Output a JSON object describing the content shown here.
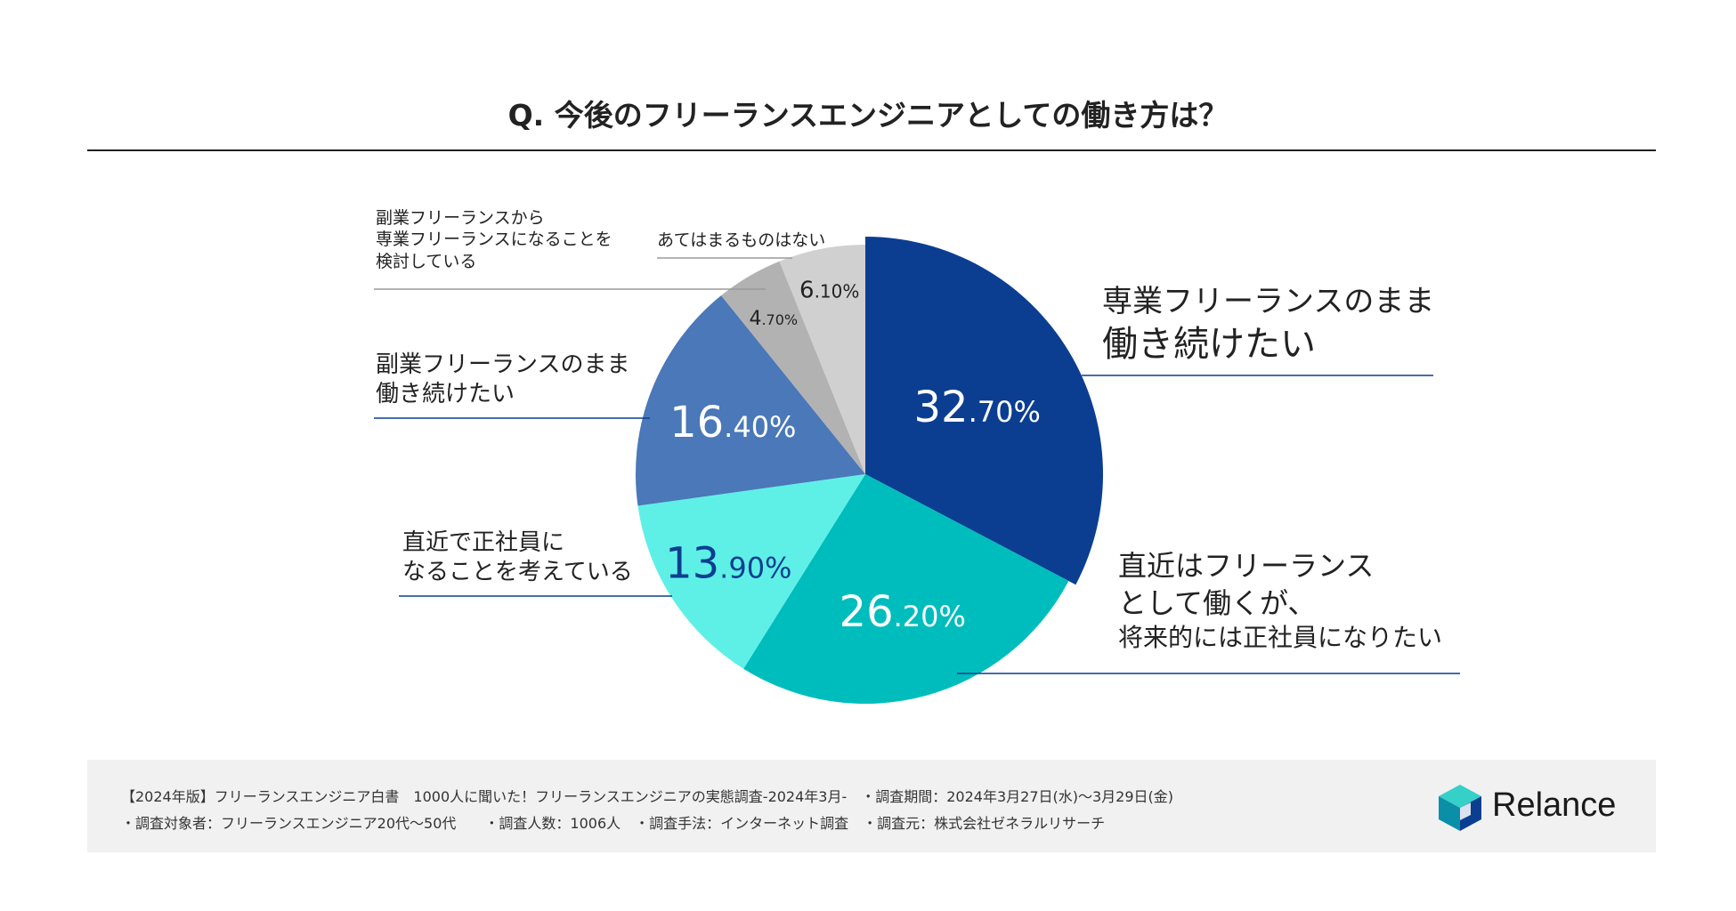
{
  "title": "Q. 今後のフリーランスエンジニアとしての働き方は？",
  "chart_data": {
    "type": "pie",
    "title": "Q. 今後のフリーランスエンジニアとしての働き方は？",
    "unit": "%",
    "slices": [
      {
        "label": "専業フリーランスのまま働き続けたい",
        "label_lines": [
          "専業フリーランスのまま",
          "働き続けたい"
        ],
        "value": 32.7,
        "int": "32",
        "dec": ".70%",
        "color": "#0b3e91",
        "text_color": "#ffffff"
      },
      {
        "label": "直近はフリーランスとして働くが、将来的には正社員になりたい",
        "label_lines": [
          "直近はフリーランス",
          "として働くが、",
          "将来的には正社員になりたい"
        ],
        "value": 26.2,
        "int": "26",
        "dec": ".20%",
        "color": "#00bdbd",
        "text_color": "#ffffff"
      },
      {
        "label": "直近で正社員になることを考えている",
        "label_lines": [
          "直近で正社員に",
          "なることを考えている"
        ],
        "value": 13.9,
        "int": "13",
        "dec": ".90%",
        "color": "#5ef0e6",
        "text_color": "#0b3e91"
      },
      {
        "label": "副業フリーランスのまま働き続けたい",
        "label_lines": [
          "副業フリーランスのまま",
          "働き続けたい"
        ],
        "value": 16.4,
        "int": "16",
        "dec": ".40%",
        "color": "#4a78b8",
        "text_color": "#ffffff"
      },
      {
        "label": "副業フリーランスから専業フリーランスになることを検討している",
        "label_lines": [
          "副業フリーランスから",
          "専業フリーランスになることを",
          "検討している"
        ],
        "value": 4.7,
        "int": "4",
        "dec": ".70%",
        "color": "#b2b2b2",
        "text_color": "#222222"
      },
      {
        "label": "あてはまるものはない",
        "label_lines": [
          "あてはまるものはない"
        ],
        "value": 6.1,
        "int": "6",
        "dec": ".10%",
        "color": "#d0d0d0",
        "text_color": "#222222"
      }
    ]
  },
  "footer": {
    "line1": "【2024年版】フリーランスエンジニア白書　1000人に聞いた！フリーランスエンジニアの実態調査-2024年3月-　・調査期間：2024年3月27日(水)〜3月29日(金)",
    "line2": "・調査対象者：フリーランスエンジニア20代〜50代　　・調査人数：1006人　・調査手法：インターネット調査　・調査元：株式会社ゼネラルリサーチ",
    "brand": "Relance"
  }
}
